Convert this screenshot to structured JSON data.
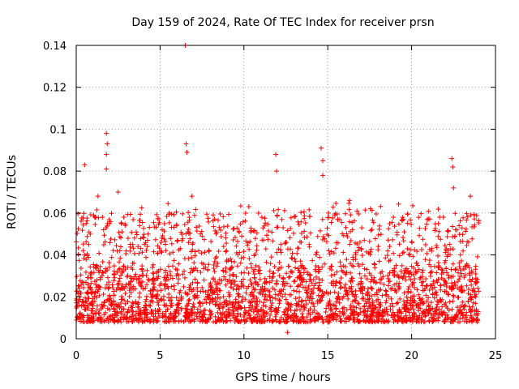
{
  "chart_data": {
    "type": "scatter",
    "title": "Day 159 of 2024, Rate Of TEC Index for receiver prsn",
    "xlabel": "GPS time / hours",
    "ylabel": "ROTI / TECUs",
    "xlim": [
      0,
      25
    ],
    "ylim": [
      0,
      0.14
    ],
    "xticks": [
      0,
      5,
      10,
      15,
      20,
      25
    ],
    "xtick_labels": [
      "0",
      "5",
      "10",
      "15",
      "20",
      "25"
    ],
    "yticks": [
      0,
      0.02,
      0.04,
      0.06,
      0.08,
      0.1,
      0.12,
      0.14
    ],
    "ytick_labels": [
      "0",
      "0.02",
      "0.04",
      "0.06",
      "0.08",
      "0.1",
      "0.12",
      "0.14"
    ],
    "grid": true,
    "marker": "plus",
    "color": "#ff0000",
    "series": [
      {
        "name": "ROTI",
        "x_range": [
          0,
          24
        ],
        "bulk_range": [
          0.008,
          0.035
        ],
        "notable_points": [
          {
            "x": 0.5,
            "y": 0.083
          },
          {
            "x": 1.3,
            "y": 0.068
          },
          {
            "x": 1.8,
            "y": 0.098
          },
          {
            "x": 1.85,
            "y": 0.093
          },
          {
            "x": 1.8,
            "y": 0.088
          },
          {
            "x": 1.8,
            "y": 0.081
          },
          {
            "x": 2.5,
            "y": 0.07
          },
          {
            "x": 6.5,
            "y": 0.14
          },
          {
            "x": 6.55,
            "y": 0.093
          },
          {
            "x": 6.6,
            "y": 0.089
          },
          {
            "x": 6.9,
            "y": 0.068
          },
          {
            "x": 11.9,
            "y": 0.088
          },
          {
            "x": 11.95,
            "y": 0.08
          },
          {
            "x": 14.6,
            "y": 0.091
          },
          {
            "x": 14.7,
            "y": 0.085
          },
          {
            "x": 14.7,
            "y": 0.078
          },
          {
            "x": 16.3,
            "y": 0.066
          },
          {
            "x": 22.4,
            "y": 0.086
          },
          {
            "x": 22.45,
            "y": 0.082
          },
          {
            "x": 22.5,
            "y": 0.072
          },
          {
            "x": 23.5,
            "y": 0.068
          },
          {
            "x": 12.6,
            "y": 0.003
          }
        ]
      }
    ]
  }
}
